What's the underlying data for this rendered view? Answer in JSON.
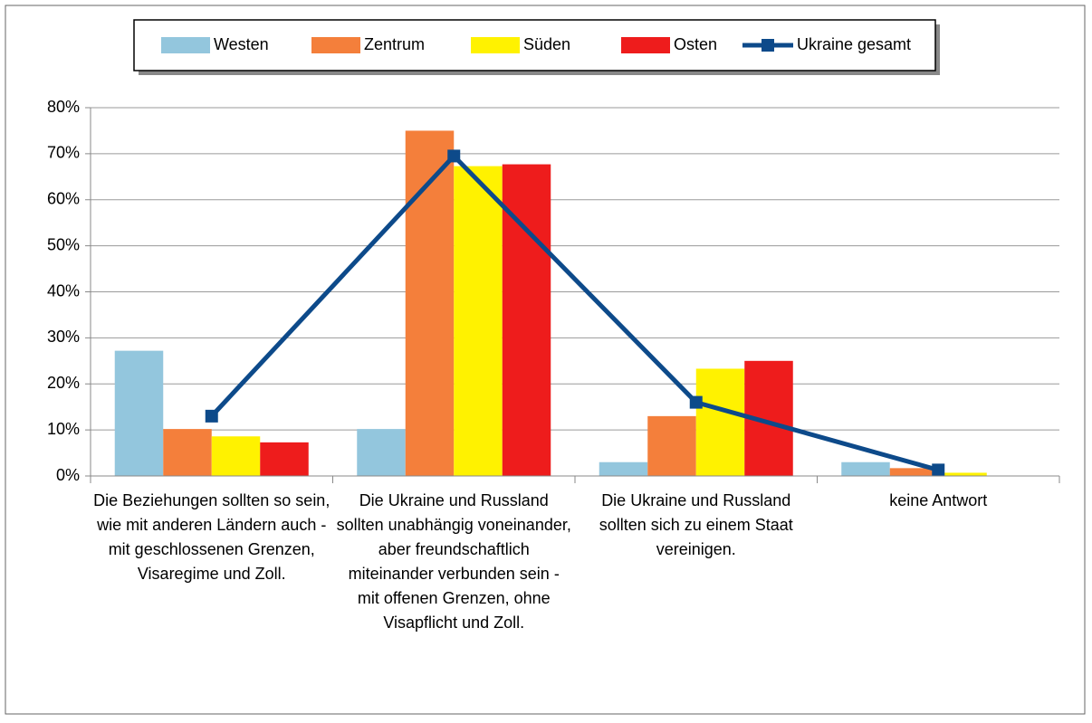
{
  "chart_data": {
    "type": "bar",
    "categories": [
      "Die Beziehungen sollten so sein, wie mit anderen Ländern auch - mit geschlossenen Grenzen, Visaregime und Zoll.",
      "Die Ukraine und Russland sollten unabhängig voneinander, aber freundschaftlich miteinander verbunden sein - mit offenen Grenzen, ohne Visapflicht und Zoll.",
      "Die Ukraine und Russland sollten sich zu einem Staat vereinigen.",
      "keine Antwort"
    ],
    "series": [
      {
        "name": "Westen",
        "color": "#93c6dd",
        "values": [
          27.2,
          10.2,
          3,
          3
        ]
      },
      {
        "name": "Zentrum",
        "color": "#f47f3b",
        "values": [
          10.2,
          75,
          13,
          1.7
        ]
      },
      {
        "name": "Süden",
        "color": "#fff200",
        "values": [
          8.6,
          67.3,
          23.3,
          0.7
        ]
      },
      {
        "name": "Osten",
        "color": "#ee1c1c",
        "values": [
          7.3,
          67.7,
          25,
          0
        ]
      },
      {
        "name": "Ukraine gesamt",
        "type": "line",
        "color": "#0d4a8a",
        "values": [
          13,
          69.5,
          16,
          1.3
        ]
      }
    ],
    "ylim": [
      0,
      80
    ],
    "yticks": [
      {
        "value": 0,
        "label": "0%"
      },
      {
        "value": 10,
        "label": "10%"
      },
      {
        "value": 20,
        "label": "20%"
      },
      {
        "value": 30,
        "label": "30%"
      },
      {
        "value": 40,
        "label": "40%"
      },
      {
        "value": 50,
        "label": "50%"
      },
      {
        "value": 60,
        "label": "60%"
      },
      {
        "value": 70,
        "label": "70%"
      },
      {
        "value": 80,
        "label": "80%"
      }
    ],
    "grid": true,
    "legend": "top"
  }
}
